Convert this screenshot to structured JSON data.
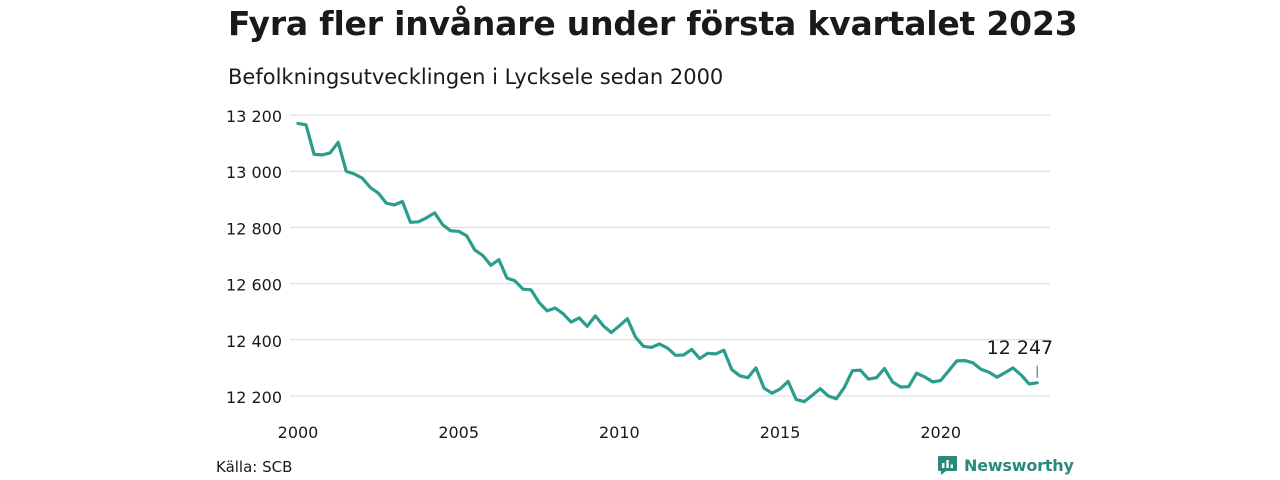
{
  "title": "Fyra fler invånare under första kvartalet 2023",
  "subtitle": "Befolkningsutvecklingen i Lycksele sedan 2000",
  "source": "Källa: SCB",
  "brand": {
    "name": "Newsworthy",
    "icon": "newsworthy-logo-icon",
    "color": "#2a8a7a"
  },
  "chart_data": {
    "type": "line",
    "title": "Fyra fler invånare under första kvartalet 2023",
    "subtitle": "Befolkningsutvecklingen i Lycksele sedan 2000",
    "xlabel": "",
    "ylabel": "",
    "xlim": [
      2000,
      2023.4
    ],
    "ylim": [
      12200,
      13200
    ],
    "x_ticks": [
      2000,
      2005,
      2010,
      2015,
      2020
    ],
    "x_tick_labels": [
      "2000",
      "2005",
      "2010",
      "2015",
      "2020"
    ],
    "y_ticks": [
      12200,
      12400,
      12600,
      12800,
      13000,
      13200
    ],
    "y_tick_labels": [
      "12 200",
      "12 400",
      "12 600",
      "12 800",
      "13 000",
      "13 200"
    ],
    "grid": true,
    "line_color": "#2a9d8c",
    "annotation": {
      "text": "12 247",
      "x": 2023.0,
      "y": 12247
    },
    "series": [
      {
        "x": [
          2000.0,
          2000.25,
          2000.5,
          2000.75,
          2001.0,
          2001.25,
          2001.5,
          2001.75,
          2002.0,
          2002.25,
          2002.5,
          2002.75,
          2003.0,
          2003.25,
          2003.5,
          2003.75,
          2004.0,
          2004.25,
          2004.5,
          2004.75,
          2005.0,
          2005.25,
          2005.5,
          2005.75,
          2006.0,
          2006.25,
          2006.5,
          2006.75,
          2007.0,
          2007.25,
          2007.5,
          2007.75,
          2008.0,
          2008.25,
          2008.5,
          2008.75,
          2009.0,
          2009.25,
          2009.5,
          2009.75,
          2010.0,
          2010.25,
          2010.5,
          2010.75,
          2011.0,
          2011.25,
          2011.5,
          2011.75,
          2012.0,
          2012.25,
          2012.5,
          2012.75,
          2013.0,
          2013.25,
          2013.5,
          2013.75,
          2014.0,
          2014.25,
          2014.5,
          2014.75,
          2015.0,
          2015.25,
          2015.5,
          2015.75,
          2016.0,
          2016.25,
          2016.5,
          2016.75,
          2017.0,
          2017.25,
          2017.5,
          2017.75,
          2018.0,
          2018.25,
          2018.5,
          2018.75,
          2019.0,
          2019.25,
          2019.5,
          2019.75,
          2020.0,
          2020.25,
          2020.5,
          2020.75,
          2021.0,
          2021.25,
          2021.5,
          2021.75,
          2022.0,
          2022.25,
          2022.5,
          2022.75,
          2023.0
        ],
        "values": [
          13170,
          13165,
          13060,
          13058,
          13065,
          13103,
          13000,
          12990,
          12975,
          12942,
          12922,
          12886,
          12880,
          12892,
          12818,
          12820,
          12834,
          12852,
          12810,
          12788,
          12786,
          12770,
          12720,
          12700,
          12665,
          12685,
          12620,
          12610,
          12580,
          12578,
          12533,
          12503,
          12513,
          12493,
          12463,
          12478,
          12448,
          12485,
          12450,
          12426,
          12450,
          12475,
          12410,
          12377,
          12373,
          12385,
          12370,
          12345,
          12346,
          12366,
          12333,
          12352,
          12350,
          12363,
          12294,
          12272,
          12265,
          12300,
          12228,
          12210,
          12225,
          12252,
          12188,
          12180,
          12202,
          12226,
          12200,
          12190,
          12230,
          12290,
          12292,
          12260,
          12265,
          12298,
          12250,
          12232,
          12233,
          12281,
          12268,
          12250,
          12255,
          12290,
          12325,
          12326,
          12318,
          12295,
          12285,
          12267,
          12283,
          12300,
          12275,
          12243,
          12247
        ]
      }
    ]
  }
}
